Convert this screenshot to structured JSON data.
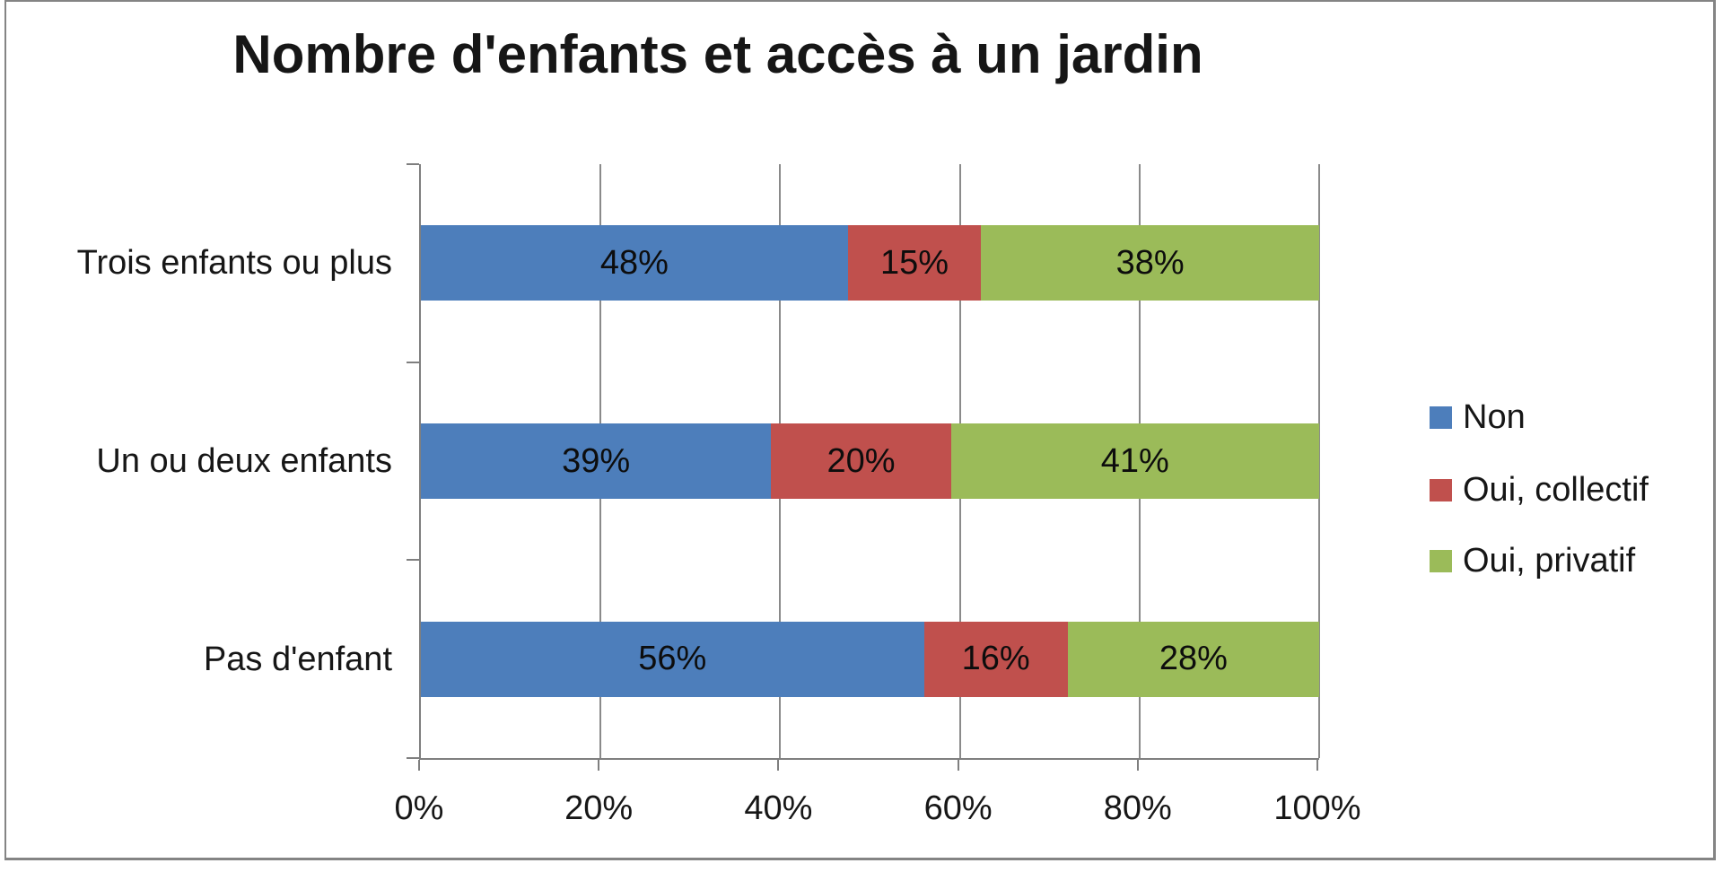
{
  "chart_data": {
    "type": "bar",
    "orientation": "horizontal",
    "stacked": true,
    "title": "Nombre d'enfants et accès à un jardin",
    "categories": [
      "Trois enfants ou plus",
      "Un ou deux enfants",
      "Pas d'enfant"
    ],
    "series": [
      {
        "name": "Non",
        "color": "#4D7EBB",
        "values": [
          48,
          39,
          56
        ]
      },
      {
        "name": "Oui, collectif",
        "color": "#C0504D",
        "values": [
          15,
          20,
          16
        ]
      },
      {
        "name": "Oui, privatif",
        "color": "#9BBB59",
        "values": [
          38,
          41,
          28
        ]
      }
    ],
    "data_labels": [
      [
        "48%",
        "15%",
        "38%"
      ],
      [
        "39%",
        "20%",
        "41%"
      ],
      [
        "56%",
        "16%",
        "28%"
      ]
    ],
    "xlim": [
      0,
      100
    ],
    "x_tick_labels": [
      "0%",
      "20%",
      "40%",
      "60%",
      "80%",
      "100%"
    ],
    "grid": true,
    "legend_position": "right",
    "axis_color": "#7f7f7f",
    "gridline_color": "#8a8a8a",
    "frame_color": "#848484",
    "label_color": "#161616"
  }
}
